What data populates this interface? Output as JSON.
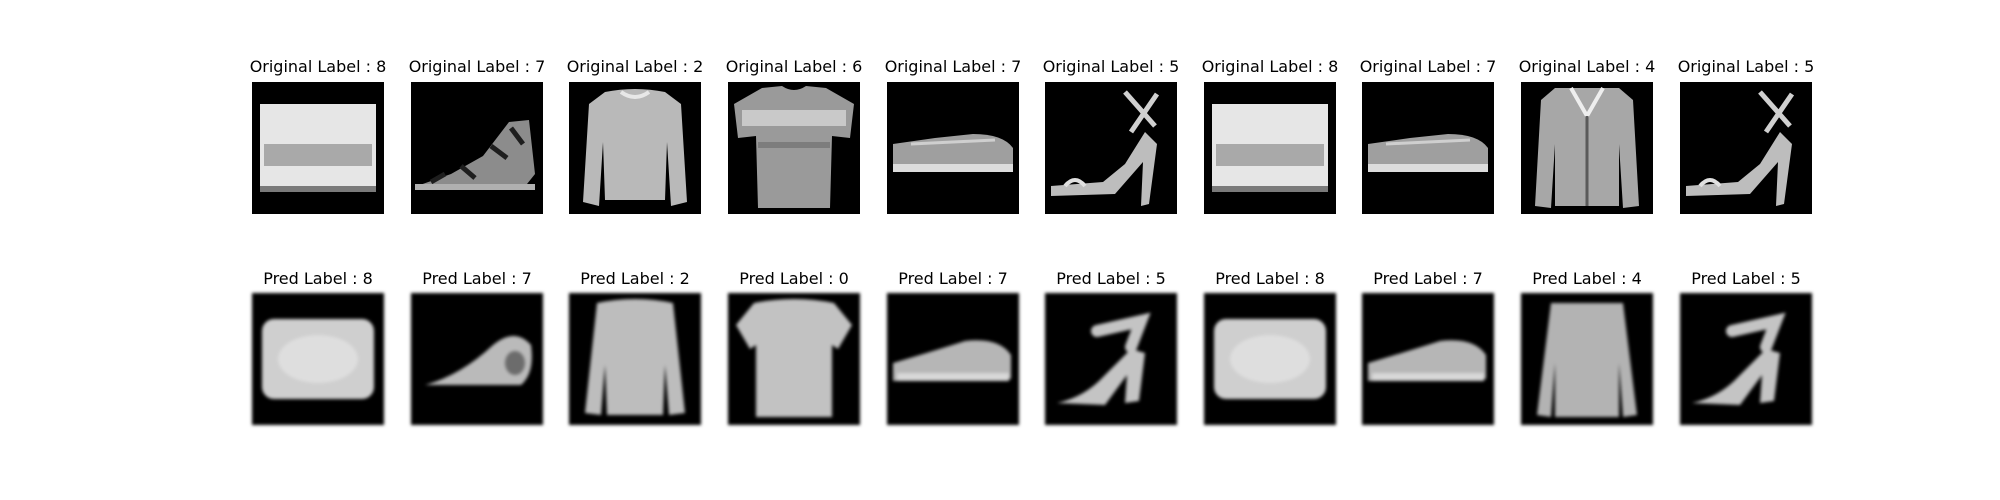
{
  "colors": {
    "background": "#ffffff",
    "panel": "#000000",
    "text": "#000000"
  },
  "rows": {
    "original": {
      "label": "Original Label",
      "values": [
        "8",
        "7",
        "2",
        "6",
        "7",
        "5",
        "8",
        "7",
        "4",
        "5"
      ]
    },
    "pred": {
      "label": "Pred Label",
      "values": [
        "8",
        "7",
        "2",
        "0",
        "7",
        "5",
        "8",
        "7",
        "4",
        "5"
      ]
    }
  },
  "titles": {
    "original": [
      "Original Label : 8",
      "Original Label : 7",
      "Original Label : 2",
      "Original Label : 6",
      "Original Label : 7",
      "Original Label : 5",
      "Original Label : 8",
      "Original Label : 7",
      "Original Label : 4",
      "Original Label : 5"
    ],
    "pred": [
      "Pred Label : 8",
      "Pred Label : 7",
      "Pred Label : 2",
      "Pred Label : 0",
      "Pred Label : 7",
      "Pred Label : 5",
      "Pred Label : 8",
      "Pred Label : 7",
      "Pred Label : 4",
      "Pred Label : 5"
    ]
  },
  "images": {
    "original": [
      "bag-icon",
      "sandal-icon",
      "pullover-icon",
      "shirt-icon",
      "sneaker-icon",
      "high-heel-sandal-icon",
      "bag-icon",
      "sneaker-icon",
      "coat-icon",
      "high-heel-sandal-icon"
    ],
    "pred": [
      "bag-blurred-icon",
      "sandal-blurred-icon",
      "pullover-blurred-icon",
      "tshirt-blurred-icon",
      "sneaker-blurred-icon",
      "high-heel-blurred-icon",
      "bag-blurred-icon",
      "sneaker-blurred-icon",
      "coat-blurred-icon",
      "high-heel-blurred-icon"
    ]
  }
}
